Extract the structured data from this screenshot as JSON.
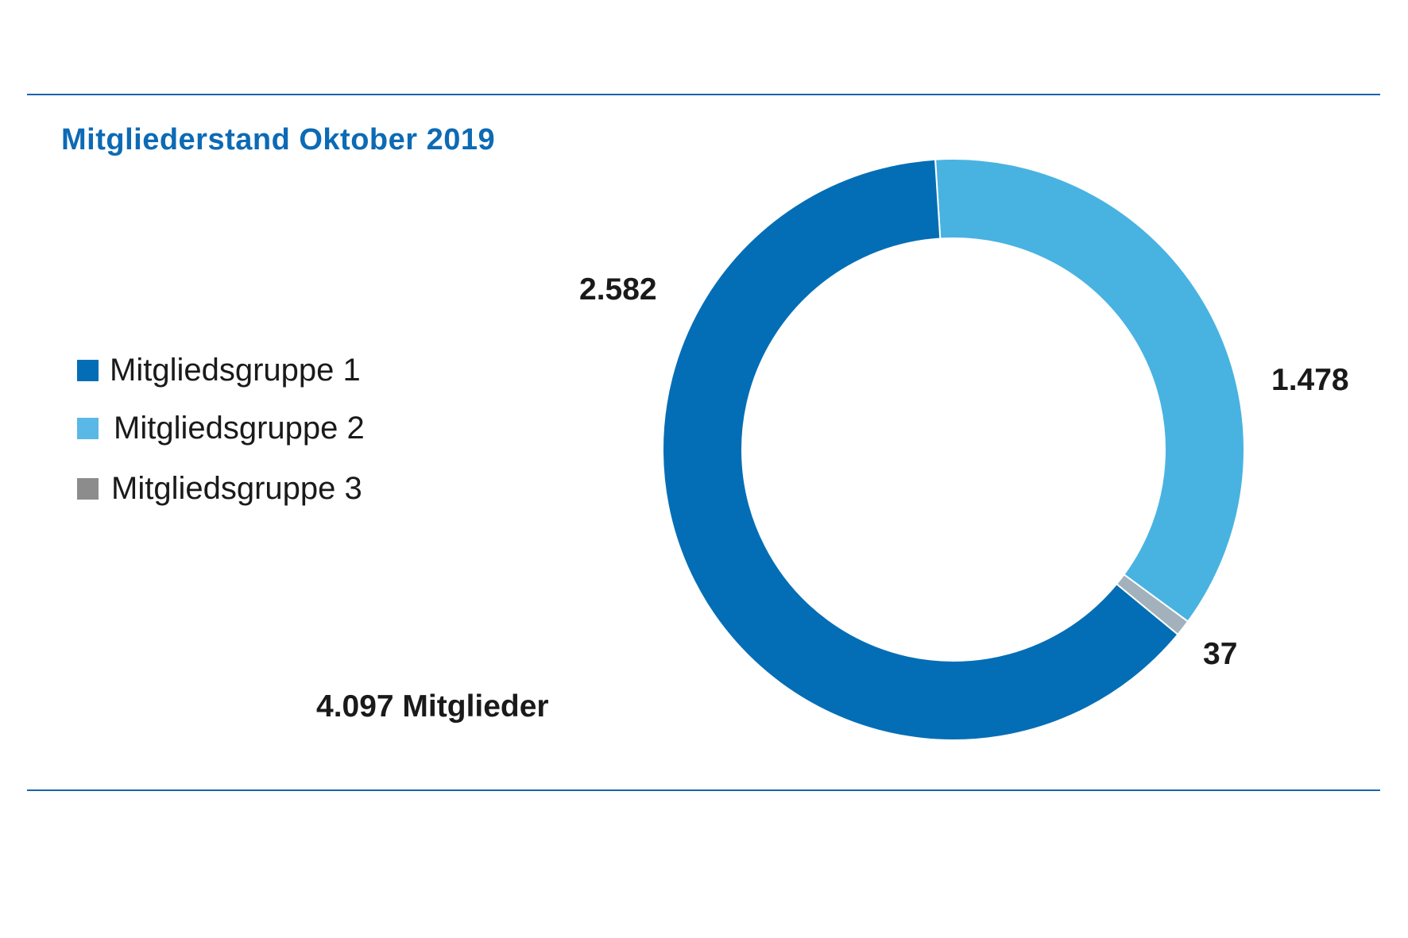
{
  "chart_data": {
    "type": "pie",
    "variant": "donut",
    "title": "Mitgliederstand Oktober 2019",
    "total_label": "4.097 Mitglieder",
    "categories": [
      "Mitgliedsgruppe 1",
      "Mitgliedsgruppe 2",
      "Mitgliedsgruppe 3"
    ],
    "values": [
      2582,
      1478,
      37
    ],
    "value_labels": [
      "2.582",
      "1.478",
      "37"
    ],
    "colors": [
      "#036eb5",
      "#48b3e1",
      "#a3b1bc"
    ],
    "legend_colors": [
      "#036eb5",
      "#5ab8e6",
      "#8c8c8c"
    ],
    "legend_position": "left"
  }
}
